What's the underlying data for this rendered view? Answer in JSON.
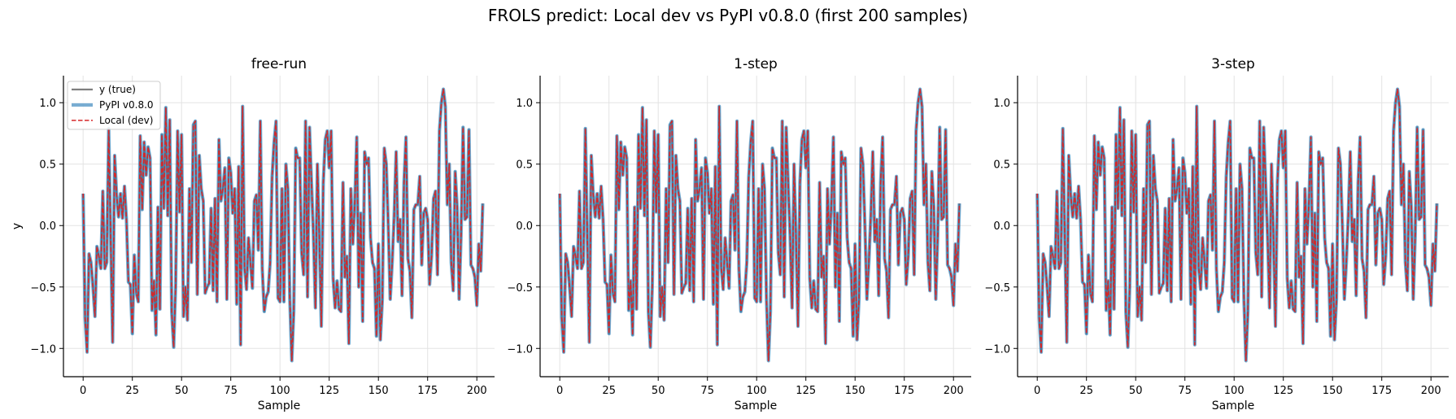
{
  "chart_data": {
    "title": "FROLS predict: Local dev vs PyPI v0.8.0 (first 200 samples)",
    "type": "line",
    "legend": {
      "placement": "upper-left",
      "panel": 0,
      "entries": [
        {
          "label": "y (true)",
          "color": "#7f7f7f",
          "style": "solid"
        },
        {
          "label": "PyPI v0.8.0",
          "color": "#1f77b4",
          "style": "solid-thick-translucent"
        },
        {
          "label": "Local (dev)",
          "color": "#d62728",
          "style": "dashed"
        }
      ]
    },
    "panels": [
      {
        "title": "free-run",
        "xlabel": "Sample",
        "ylabel": "y"
      },
      {
        "title": "1-step",
        "xlabel": "Sample",
        "ylabel": ""
      },
      {
        "title": "3-step",
        "xlabel": "Sample",
        "ylabel": ""
      }
    ],
    "xlim": [
      -10,
      209
    ],
    "ylim": [
      -1.23,
      1.22
    ],
    "xticks": [
      0,
      25,
      50,
      75,
      100,
      125,
      150,
      175,
      200
    ],
    "xtick_labels": [
      "0",
      "25",
      "50",
      "75",
      "100",
      "125",
      "150",
      "175",
      "200"
    ],
    "yticks": [
      1.0,
      0.5,
      0.0,
      -0.5,
      -1.0
    ],
    "ytick_labels": [
      "1.0",
      "0.5",
      "0.0",
      "−0.5",
      "−1.0"
    ],
    "grid": true,
    "series_names": [
      "y (true)",
      "PyPI v0.8.0",
      "Local (dev)"
    ],
    "y": [
      0.26,
      -0.75,
      -1.03,
      -0.23,
      -0.3,
      -0.5,
      -0.74,
      -0.17,
      -0.25,
      -0.35,
      0.28,
      -0.35,
      -0.3,
      0.79,
      -0.1,
      -0.95,
      0.57,
      0.25,
      0.07,
      0.26,
      0.06,
      0.32,
      0.05,
      -0.46,
      -0.48,
      -0.88,
      -0.24,
      -0.55,
      -0.62,
      0.73,
      0.13,
      0.68,
      0.41,
      0.64,
      0.55,
      -0.69,
      -0.45,
      -0.89,
      0.15,
      -0.68,
      0.74,
      0.14,
      0.96,
      0.08,
      0.86,
      -0.7,
      -0.99,
      -0.48,
      0.77,
      0.11,
      0.74,
      -0.74,
      -0.5,
      -0.77,
      0.3,
      -0.3,
      0.82,
      0.85,
      -0.56,
      0.57,
      0.3,
      0.2,
      -0.55,
      -0.5,
      -0.47,
      0.14,
      -0.53,
      0.22,
      -0.62,
      0.7,
      0.2,
      0.3,
      0.47,
      -0.6,
      0.55,
      0.43,
      0.1,
      0.3,
      -0.64,
      0.48,
      -0.97,
      0.97,
      -0.34,
      -0.52,
      -0.1,
      -0.3,
      -0.51,
      0.2,
      0.25,
      -0.2,
      0.85,
      -0.35,
      -0.7,
      -0.58,
      -0.54,
      -0.3,
      0.4,
      0.68,
      0.85,
      -0.59,
      -0.62,
      0.3,
      -0.62,
      0.5,
      0.3,
      -0.6,
      -1.1,
      -0.7,
      0.63,
      0.55,
      0.55,
      -0.22,
      -0.4,
      0.85,
      -0.58,
      0.8,
      0.35,
      -0.08,
      -0.67,
      0.5,
      -0.1,
      -0.82,
      0.35,
      0.7,
      0.77,
      0.47,
      0.77,
      -0.43,
      -0.67,
      -0.45,
      -0.68,
      -0.7,
      0.35,
      -0.42,
      -0.25,
      -0.96,
      0.3,
      -0.15,
      0.18,
      0.72,
      -0.5,
      0.1,
      -0.78,
      0.6,
      0.5,
      0.55,
      -0.1,
      -0.3,
      -0.35,
      -0.9,
      -0.15,
      -0.93,
      -0.6,
      0.63,
      0.5,
      0.0,
      -0.6,
      -0.3,
      0.08,
      0.6,
      -0.13,
      0.05,
      -0.57,
      0.35,
      0.72,
      -0.27,
      -0.37,
      -0.75,
      0.13,
      0.17,
      0.17,
      0.4,
      -0.32,
      0.1,
      0.14,
      0.05,
      -0.48,
      -0.25,
      0.22,
      0.28,
      -0.4,
      0.77,
      1.0,
      1.11,
      0.97,
      0.17,
      0.5,
      -0.3,
      -0.53,
      0.44,
      0.15,
      -0.6,
      -0.07,
      0.8,
      0.05,
      0.07,
      0.78,
      -0.32,
      -0.35,
      -0.42,
      -0.65,
      -0.15,
      -0.37,
      0.18
    ]
  }
}
